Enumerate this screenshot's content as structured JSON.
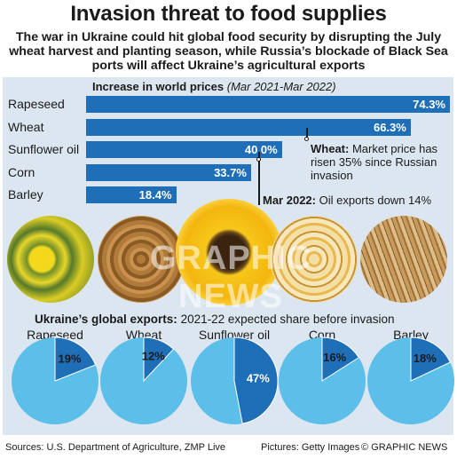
{
  "header": {
    "title": "Invasion threat to food supplies",
    "subtitle": "The war in Ukraine could hit global food security by disrupting the July wheat harvest and planting season, while Russia’s blockade of Black Sea ports will affect Ukraine’s agricultural exports"
  },
  "prices_section": {
    "title": "Increase in world prices",
    "period": "(Mar 2021-Mar 2022)"
  },
  "notes": {
    "wheat_bold": "Wheat:",
    "wheat_text": "Market price has risen 35% since Russian invasion",
    "oil_bold": "Mar 2022:",
    "oil_text": "Oil exports down 14%"
  },
  "exports_section": {
    "title": "Ukraine’s global exports:",
    "subtitle": "2021-22 expected share before invasion"
  },
  "watermark": "GRAPHIC NEWS",
  "footer": {
    "sources": "Sources: U.S. Department of Agriculture, ZMP Live",
    "pictures": "Pictures: Getty Images",
    "credit": "© GRAPHIC NEWS"
  },
  "colors": {
    "bar": "#1f6fb8",
    "pie_light": "#5bbfe9",
    "pie_dark": "#1f6fb8",
    "panel": "#dce6f0"
  },
  "photos": [
    "rapeseed-photo",
    "wheat-photo",
    "sunflower-photo",
    "corn-photo",
    "barley-photo"
  ],
  "chart_data": [
    {
      "type": "bar",
      "title": "Increase in world prices",
      "subtitle": "(Mar 2021-Mar 2022)",
      "categories": [
        "Rapeseed",
        "Wheat",
        "Sunflower oil",
        "Corn",
        "Barley"
      ],
      "values": [
        74.3,
        66.3,
        40.0,
        33.7,
        18.4
      ],
      "value_labels": [
        "74.3%",
        "66.3%",
        "40.0%",
        "33.7%",
        "18.4%"
      ],
      "orientation": "horizontal",
      "xlim": [
        0,
        74.3
      ]
    },
    {
      "type": "pie",
      "title": "Ukraine’s global exports:",
      "subtitle": "2021-22 expected share before invasion",
      "categories": [
        "Rapeseed",
        "Wheat",
        "Sunflower oil",
        "Corn",
        "Barley"
      ],
      "values": [
        19,
        12,
        47,
        16,
        18
      ],
      "value_labels": [
        "19%",
        "12%",
        "47%",
        "16%",
        "18%"
      ]
    }
  ]
}
